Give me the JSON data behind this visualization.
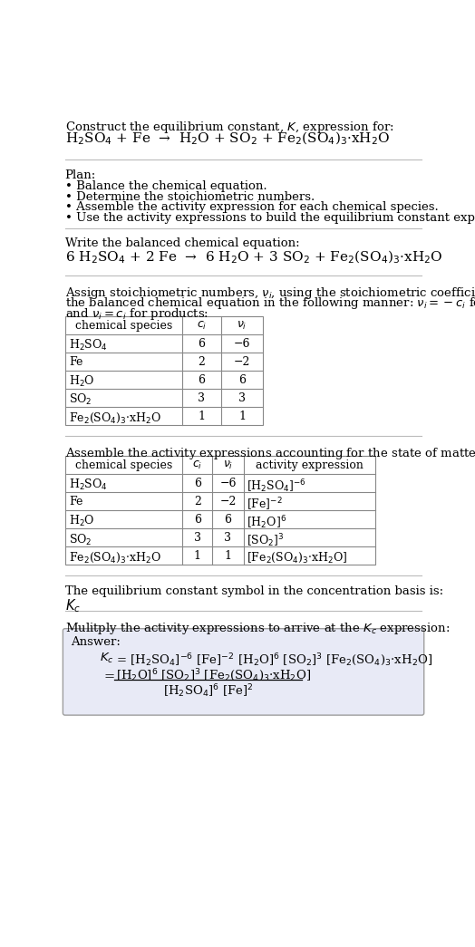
{
  "title_line1": "Construct the equilibrium constant, $K$, expression for:",
  "title_line2_plain": "H$_2$SO$_4$ + Fe  →  H$_2$O + SO$_2$ + Fe$_2$(SO$_4$)$_3$·xH$_2$O",
  "plan_header": "Plan:",
  "plan_bullets": [
    "• Balance the chemical equation.",
    "• Determine the stoichiometric numbers.",
    "• Assemble the activity expression for each chemical species.",
    "• Use the activity expressions to build the equilibrium constant expression."
  ],
  "balanced_header": "Write the balanced chemical equation:",
  "balanced_eq": "6 H$_2$SO$_4$ + 2 Fe  →  6 H$_2$O + 3 SO$_2$ + Fe$_2$(SO$_4$)$_3$·xH$_2$O",
  "stoich_text1": "Assign stoichiometric numbers, $\\nu_i$, using the stoichiometric coefficients, $c_i$, from",
  "stoich_text2": "the balanced chemical equation in the following manner: $\\nu_i = -c_i$ for reactants",
  "stoich_text3": "and $\\nu_i = c_i$ for products:",
  "table1_col_headers": [
    "chemical species",
    "$c_i$",
    "$\\nu_i$"
  ],
  "table1_rows": [
    [
      "H$_2$SO$_4$",
      "6",
      "−6"
    ],
    [
      "Fe",
      "2",
      "−2"
    ],
    [
      "H$_2$O",
      "6",
      "6"
    ],
    [
      "SO$_2$",
      "3",
      "3"
    ],
    [
      "Fe$_2$(SO$_4$)$_3$·xH$_2$O",
      "1",
      "1"
    ]
  ],
  "activity_header": "Assemble the activity expressions accounting for the state of matter and $\\nu_i$:",
  "table2_col_headers": [
    "chemical species",
    "$c_i$",
    "$\\nu_i$",
    "activity expression"
  ],
  "table2_rows": [
    [
      "H$_2$SO$_4$",
      "6",
      "−6",
      "[H$_2$SO$_4$]$^{-6}$"
    ],
    [
      "Fe",
      "2",
      "−2",
      "[Fe]$^{-2}$"
    ],
    [
      "H$_2$O",
      "6",
      "6",
      "[H$_2$O]$^6$"
    ],
    [
      "SO$_2$",
      "3",
      "3",
      "[SO$_2$]$^3$"
    ],
    [
      "Fe$_2$(SO$_4$)$_3$·xH$_2$O",
      "1",
      "1",
      "[Fe$_2$(SO$_4$)$_3$·xH$_2$O]"
    ]
  ],
  "kc_header": "The equilibrium constant symbol in the concentration basis is:",
  "kc_symbol": "$K_c$",
  "multiply_header": "Mulitply the activity expressions to arrive at the $K_c$ expression:",
  "answer_label": "Answer:",
  "ans_line1a": "$K_c$",
  "ans_line1b": " = [H$_2$SO$_4$]$^{-6}$ [Fe]$^{-2}$ [H$_2$O]$^6$ [SO$_2$]$^3$ [Fe$_2$(SO$_4$)$_3$·xH$_2$O]",
  "ans_eq_sign": "=",
  "ans_num": "[H$_2$O]$^6$ [SO$_2$]$^3$ [Fe$_2$(SO$_4$)$_3$·xH$_2$O]",
  "ans_den": "[H$_2$SO$_4$]$^6$ [Fe]$^2$",
  "bg_color": "#ffffff",
  "text_color": "#000000",
  "sep_color": "#bbbbbb",
  "table_color": "#888888",
  "box_bg": "#e8eaf6",
  "box_border": "#9e9e9e",
  "fs": 9.5,
  "fs_table": 9.0
}
